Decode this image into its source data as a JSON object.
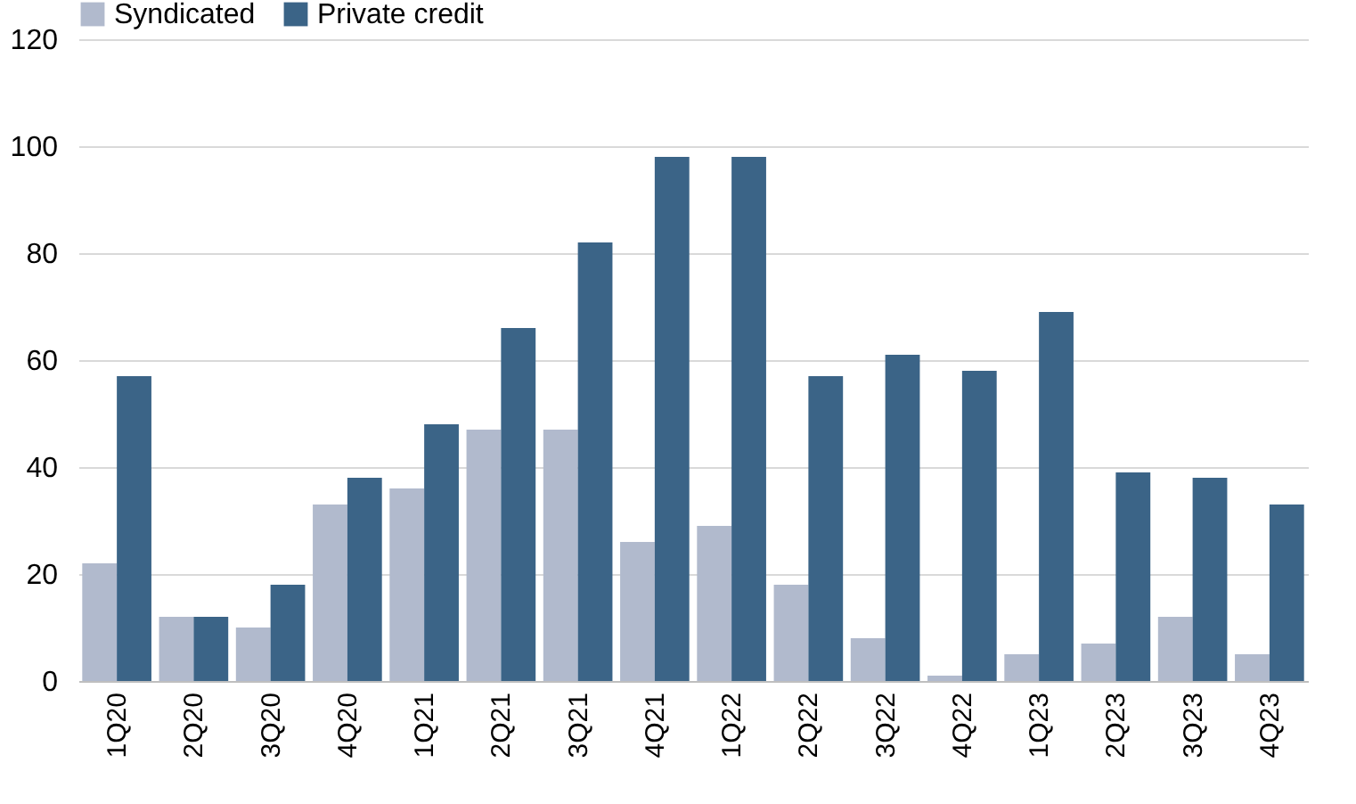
{
  "chart_data": {
    "type": "bar",
    "categories": [
      "1Q20",
      "2Q20",
      "3Q20",
      "4Q20",
      "1Q21",
      "2Q21",
      "3Q21",
      "4Q21",
      "1Q22",
      "2Q22",
      "3Q22",
      "4Q22",
      "1Q23",
      "2Q23",
      "3Q23",
      "4Q23"
    ],
    "series": [
      {
        "name": "Syndicated",
        "color": "#b1bacd",
        "values": [
          22,
          12,
          10,
          33,
          36,
          47,
          47,
          26,
          29,
          18,
          8,
          1,
          5,
          7,
          12,
          5
        ]
      },
      {
        "name": "Private credit",
        "color": "#3b6487",
        "values": [
          57,
          12,
          18,
          38,
          48,
          66,
          82,
          98,
          98,
          57,
          61,
          58,
          69,
          39,
          38,
          33
        ]
      }
    ],
    "ylim": [
      0,
      120
    ],
    "yticks": [
      0,
      20,
      40,
      60,
      80,
      100,
      120
    ],
    "grid": "y",
    "legend": "top left"
  }
}
